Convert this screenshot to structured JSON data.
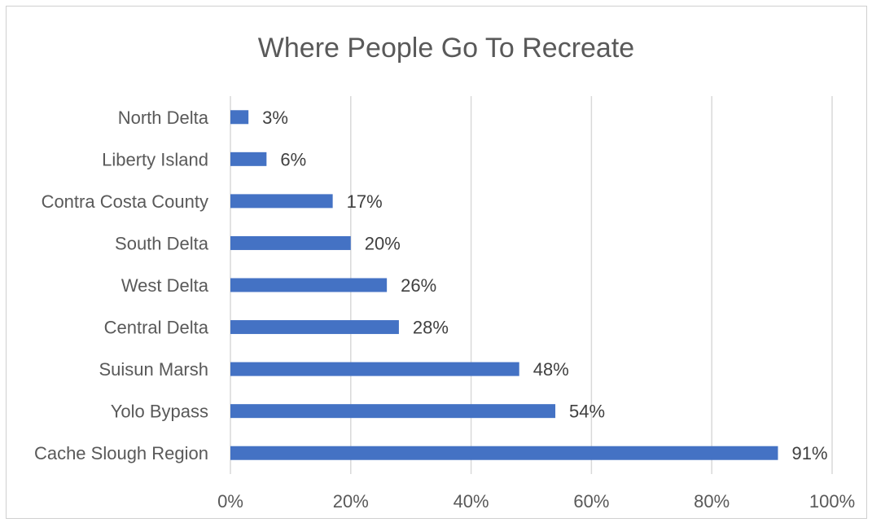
{
  "chart_data": {
    "type": "bar",
    "orientation": "horizontal",
    "title": "Where People Go To Recreate",
    "categories": [
      "North Delta",
      "Liberty Island",
      "Contra Costa County",
      "South Delta",
      "West Delta",
      "Central Delta",
      "Suisun Marsh",
      "Yolo Bypass",
      "Cache Slough Region"
    ],
    "values": [
      3,
      6,
      17,
      20,
      26,
      28,
      48,
      54,
      91
    ],
    "data_labels": [
      "3%",
      "6%",
      "17%",
      "20%",
      "26%",
      "28%",
      "48%",
      "54%",
      "91%"
    ],
    "xlim": [
      0,
      100
    ],
    "x_ticks": [
      0,
      20,
      40,
      60,
      80,
      100
    ],
    "x_tick_labels": [
      "0%",
      "20%",
      "40%",
      "60%",
      "80%",
      "100%"
    ],
    "grid": "vertical",
    "bar_color": "#4472C4",
    "legend": "none"
  }
}
